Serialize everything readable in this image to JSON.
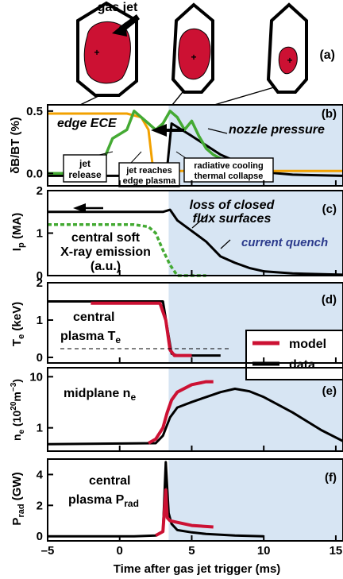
{
  "figure": {
    "xlabel": "Time after gas jet trigger (ms)",
    "xticks": [
      "-5",
      "0",
      "5",
      "10",
      "15"
    ],
    "xlim": [
      -5,
      15.5
    ],
    "shade_start_ms": 3.4,
    "colors": {
      "data": "#000000",
      "model": "#cc1133",
      "ece": "#f2a100",
      "sxr": "#44aa33",
      "shade": "#d7e5f3",
      "plasma": "#cc1133"
    }
  },
  "top": {
    "gas_jet": "gas jet",
    "panel_tag": "(a)"
  },
  "panels": {
    "b": {
      "tag": "(b)",
      "ylabel": "δB/BT (%)",
      "yticks": [
        "0.5",
        "0.0"
      ],
      "edge_ece": "edge ECE",
      "nozzle_pressure": "nozzle pressure",
      "box_jet_l1": "jet",
      "box_jet_l2": "release",
      "box_edge_l1": "jet reaches",
      "box_edge_l2": "edge plasma",
      "box_rad_l1": "radiative cooling",
      "box_rad_l2": "thermal collapse"
    },
    "c": {
      "tag": "(c)",
      "ylabel_main": "I",
      "ylabel_sub": "p",
      "ylabel_unit": " (MA)",
      "yticks": [
        "2",
        "1",
        "0"
      ],
      "loss_l1": "loss of closed",
      "loss_l2": "flux surfaces",
      "current_quench": "current quench",
      "sxr_l1": "central soft",
      "sxr_l2": "X-ray emission",
      "sxr_l3": "(a.u.)"
    },
    "d": {
      "tag": "(d)",
      "ylabel_main": "T",
      "ylabel_sub": "e",
      "ylabel_unit": " (keV)",
      "yticks": [
        "2",
        "1",
        "0"
      ],
      "text_l1": "central",
      "text_l2_main": "plasma T",
      "text_l2_sub": "e",
      "legend_model": "model",
      "legend_data": "data"
    },
    "e": {
      "tag": "(e)",
      "ylabel_main": "n",
      "ylabel_sub": "e",
      "ylabel_unit": " (10",
      "ylabel_exp": "20",
      "ylabel_unit2": "m",
      "ylabel_exp2": "−3",
      "ylabel_close": ")",
      "yticks": [
        "10",
        "1"
      ],
      "text_main": "midplane n",
      "text_sub": "e"
    },
    "f": {
      "tag": "(f)",
      "ylabel_main": "P",
      "ylabel_sub": "rad",
      "ylabel_unit": " (GW)",
      "yticks": [
        "4",
        "2",
        "0"
      ],
      "text_l1": "central",
      "text_l2_main": "plasma P",
      "text_l2_sub": "rad"
    }
  },
  "chart_data": [
    {
      "type": "line",
      "panel": "b",
      "ylabel": "δB/BT (%)",
      "ylim": [
        -0.1,
        0.55
      ],
      "series": [
        {
          "color": "#000000",
          "x": [
            -5,
            2.0,
            2.3,
            3.0,
            3.3,
            3.6,
            5,
            7,
            9,
            10,
            12,
            15.5
          ],
          "y": [
            -0.02,
            -0.02,
            0.0,
            0.0,
            0.05,
            0.4,
            0.3,
            0.15,
            0.05,
            0.01,
            -0.01,
            -0.02
          ]
        },
        {
          "color": "#f2a100",
          "x": [
            -5,
            0.5,
            1.5,
            2.0,
            2.3,
            2.5,
            5,
            15.5
          ],
          "y": [
            0.48,
            0.48,
            0.45,
            0.35,
            0.05,
            0.02,
            0.02,
            0.02
          ]
        },
        {
          "color": "#44aa33",
          "x": [
            -5,
            -1.5,
            -0.5,
            0.5,
            1.0,
            1.5,
            2.0,
            2.5,
            3.0,
            3.5,
            4.0,
            4.5,
            5.0,
            5.5,
            6.0,
            6.5,
            7.0
          ],
          "y": [
            0.0,
            0.0,
            0.28,
            0.35,
            0.5,
            0.45,
            0.4,
            0.35,
            0.4,
            0.5,
            0.45,
            0.35,
            0.42,
            0.3,
            0.2,
            0.15,
            0.12
          ]
        }
      ]
    },
    {
      "type": "line",
      "panel": "c",
      "ylabel": "Ip (MA)",
      "ylim": [
        0,
        2
      ],
      "series": [
        {
          "color": "#000000",
          "x": [
            -5,
            3.0,
            3.5,
            4.0,
            5.0,
            6.0,
            7.0,
            8.0,
            9.0,
            10.0,
            12.0,
            15.5
          ],
          "y": [
            1.5,
            1.5,
            1.55,
            1.3,
            1.05,
            0.8,
            0.45,
            0.3,
            0.18,
            0.1,
            0.05,
            0.02
          ]
        },
        {
          "color": "#44aa33",
          "x": [
            -5,
            1.0,
            2.0,
            2.5,
            3.0,
            3.5,
            4.0,
            6.0
          ],
          "y": [
            1.2,
            1.2,
            1.15,
            1.0,
            0.6,
            0.25,
            0.0,
            0.0
          ]
        }
      ]
    },
    {
      "type": "line",
      "panel": "d",
      "ylabel": "Te (keV)",
      "ylim": [
        -0.15,
        2
      ],
      "series": [
        {
          "name": "data",
          "color": "#000000",
          "x": [
            -5,
            3.0,
            3.3,
            3.6,
            4.0,
            7.0
          ],
          "y": [
            1.5,
            1.5,
            0.8,
            0.1,
            0.05,
            0.05
          ]
        },
        {
          "name": "model",
          "color": "#cc1133",
          "x": [
            -2,
            2.8,
            3.2,
            3.5,
            3.8,
            5.0
          ],
          "y": [
            1.45,
            1.45,
            1.0,
            0.2,
            0.05,
            0.05
          ]
        }
      ]
    },
    {
      "type": "line",
      "panel": "e",
      "ylabel": "ne (10^20 m^-3)",
      "yscale": "log",
      "ylim": [
        0.35,
        15
      ],
      "series": [
        {
          "name": "data",
          "color": "#000000",
          "x": [
            -5,
            2.5,
            3.0,
            3.5,
            4.0,
            5.0,
            6.0,
            7.0,
            8.0,
            9.0,
            10.0,
            12.0,
            14.0,
            15.5
          ],
          "y": [
            0.48,
            0.5,
            0.7,
            1.6,
            2.5,
            3.2,
            4.0,
            5.0,
            5.8,
            5.2,
            4.0,
            2.0,
            0.9,
            0.55
          ]
        },
        {
          "name": "model",
          "color": "#cc1133",
          "x": [
            2.0,
            2.5,
            3.0,
            3.3,
            3.6,
            4.0,
            5.0,
            6.0,
            6.5
          ],
          "y": [
            0.5,
            0.6,
            1.0,
            2.0,
            3.5,
            5.0,
            7.0,
            8.0,
            8.0
          ]
        }
      ]
    },
    {
      "type": "line",
      "panel": "f",
      "ylabel": "Prad (GW)",
      "ylim": [
        -0.3,
        5
      ],
      "series": [
        {
          "name": "data",
          "color": "#000000",
          "x": [
            -5,
            1.0,
            2.5,
            3.0,
            3.2,
            3.4,
            3.6,
            4.0,
            5.0,
            6.0,
            7.0,
            8.0,
            10.0
          ],
          "y": [
            0,
            0,
            0.05,
            0.3,
            4.8,
            1.5,
            0.8,
            0.4,
            0.25,
            0.15,
            0.1,
            0.05,
            0.0
          ]
        },
        {
          "name": "model",
          "color": "#cc1133",
          "x": [
            2.5,
            3.0,
            3.2,
            3.3,
            3.5,
            4.0,
            5.0,
            6.5
          ],
          "y": [
            0.05,
            0.3,
            3.0,
            1.2,
            1.0,
            0.9,
            0.7,
            0.6
          ]
        }
      ]
    }
  ]
}
